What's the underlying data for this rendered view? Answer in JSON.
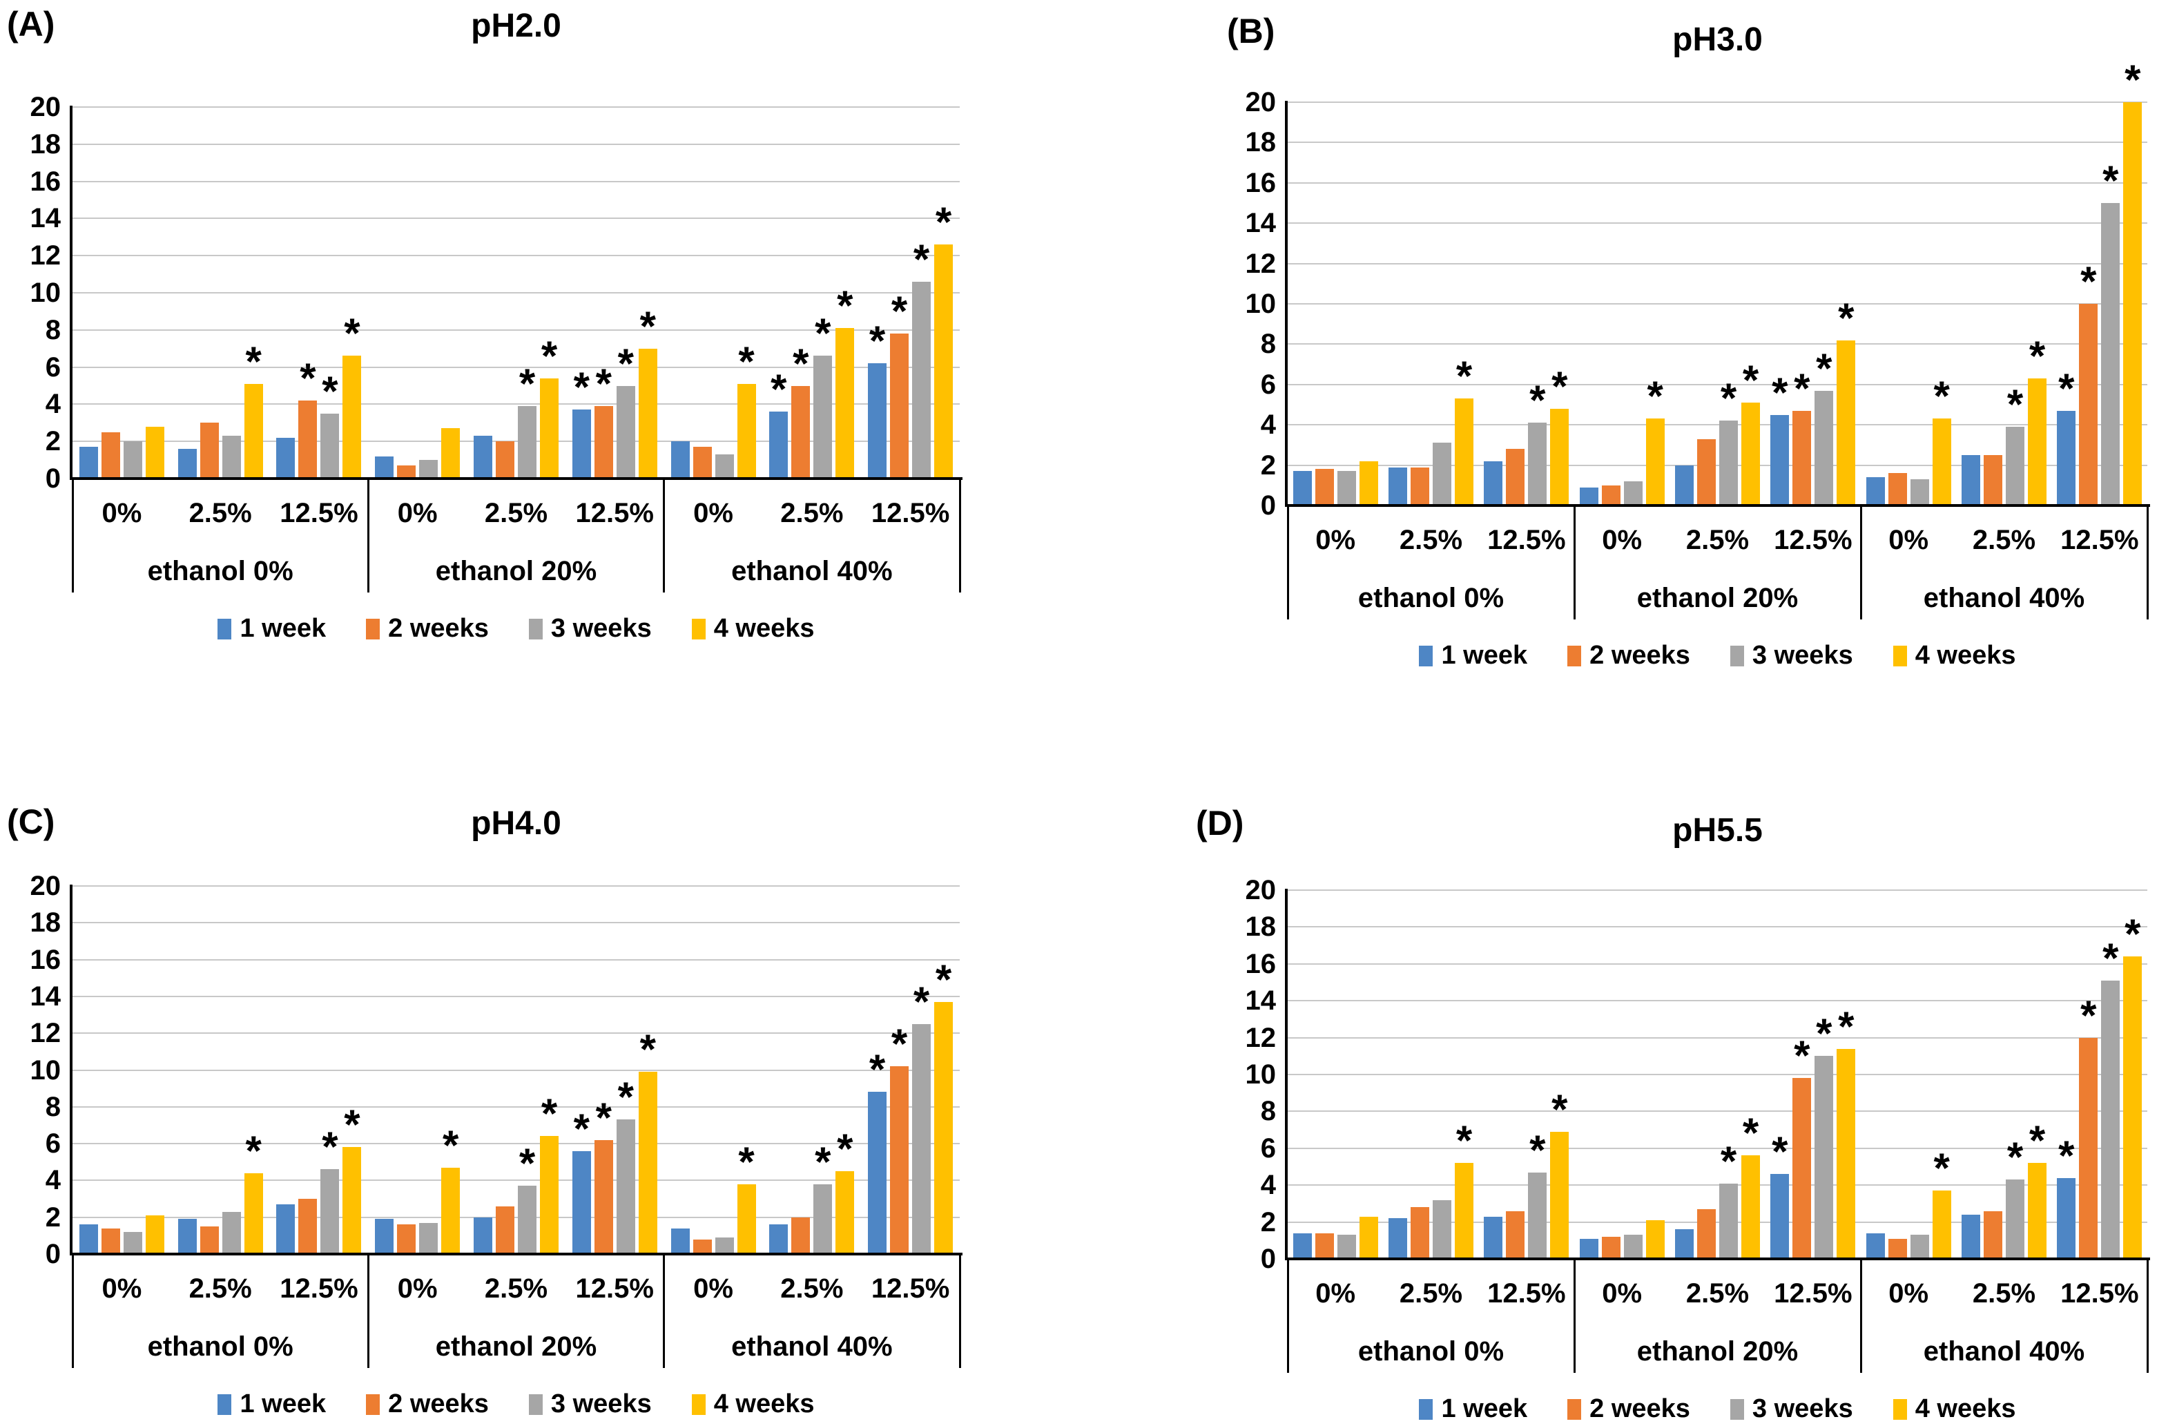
{
  "figure": {
    "background_color": "#ffffff",
    "gridline_color": "#C8C8C8",
    "axis_color": "#000000",
    "significance_marker": "*",
    "series": [
      "1 week",
      "2 weeks",
      "3 weeks",
      "4 weeks"
    ],
    "series_colors": [
      "#4E86C5",
      "#ED7D31",
      "#A6A6A6",
      "#FFC000"
    ],
    "y_ticks": [
      0,
      2,
      4,
      6,
      8,
      10,
      12,
      14,
      16,
      18,
      20
    ],
    "concentration_labels": [
      "0%",
      "2.5%",
      "12.5%"
    ],
    "ethanol_labels": [
      "ethanol 0%",
      "ethanol 20%",
      "ethanol 40%"
    ]
  },
  "chart_data": [
    {
      "type": "bar",
      "panel_label": "(A)",
      "title": "pH2.0",
      "ylim": [
        0,
        20
      ],
      "y_tick_step": 2,
      "grid": true,
      "legend": [
        "1 week",
        "2 weeks",
        "3 weeks",
        "4 weeks"
      ],
      "legend_position": "bottom",
      "groups": [
        {
          "ethanol": "ethanol 0%",
          "concentration": "0%",
          "values": [
            1.7,
            2.5,
            2.0,
            2.8
          ],
          "sig": [
            false,
            false,
            false,
            false
          ]
        },
        {
          "ethanol": "ethanol 0%",
          "concentration": "2.5%",
          "values": [
            1.6,
            3.0,
            2.3,
            5.1
          ],
          "sig": [
            false,
            false,
            false,
            true
          ]
        },
        {
          "ethanol": "ethanol 0%",
          "concentration": "12.5%",
          "values": [
            2.2,
            4.2,
            3.5,
            6.6
          ],
          "sig": [
            false,
            true,
            true,
            true
          ]
        },
        {
          "ethanol": "ethanol 20%",
          "concentration": "0%",
          "values": [
            1.2,
            0.7,
            1.0,
            2.7
          ],
          "sig": [
            false,
            false,
            false,
            false
          ]
        },
        {
          "ethanol": "ethanol 20%",
          "concentration": "2.5%",
          "values": [
            2.3,
            2.0,
            3.9,
            5.4
          ],
          "sig": [
            false,
            false,
            true,
            true
          ]
        },
        {
          "ethanol": "ethanol 20%",
          "concentration": "12.5%",
          "values": [
            3.7,
            3.9,
            5.0,
            7.0
          ],
          "sig": [
            true,
            true,
            true,
            true
          ]
        },
        {
          "ethanol": "ethanol 40%",
          "concentration": "0%",
          "values": [
            2.0,
            1.7,
            1.3,
            5.1
          ],
          "sig": [
            false,
            false,
            false,
            true
          ]
        },
        {
          "ethanol": "ethanol 40%",
          "concentration": "2.5%",
          "values": [
            3.6,
            5.0,
            6.6,
            8.1
          ],
          "sig": [
            true,
            true,
            true,
            true
          ]
        },
        {
          "ethanol": "ethanol 40%",
          "concentration": "12.5%",
          "values": [
            6.2,
            7.8,
            10.6,
            12.6
          ],
          "sig": [
            true,
            true,
            true,
            true
          ]
        }
      ]
    },
    {
      "type": "bar",
      "panel_label": "(B)",
      "title": "pH3.0",
      "ylim": [
        0,
        20
      ],
      "y_tick_step": 2,
      "grid": true,
      "legend": [
        "1 week",
        "2 weeks",
        "3 weeks",
        "4 weeks"
      ],
      "legend_position": "bottom",
      "groups": [
        {
          "ethanol": "ethanol 0%",
          "concentration": "0%",
          "values": [
            1.7,
            1.8,
            1.7,
            2.2
          ],
          "sig": [
            false,
            false,
            false,
            false
          ]
        },
        {
          "ethanol": "ethanol 0%",
          "concentration": "2.5%",
          "values": [
            1.9,
            1.9,
            3.1,
            5.3
          ],
          "sig": [
            false,
            false,
            false,
            true
          ]
        },
        {
          "ethanol": "ethanol 0%",
          "concentration": "12.5%",
          "values": [
            2.2,
            2.8,
            4.1,
            4.8
          ],
          "sig": [
            false,
            false,
            true,
            true
          ]
        },
        {
          "ethanol": "ethanol 20%",
          "concentration": "0%",
          "values": [
            0.9,
            1.0,
            1.2,
            4.3
          ],
          "sig": [
            false,
            false,
            false,
            true
          ]
        },
        {
          "ethanol": "ethanol 20%",
          "concentration": "2.5%",
          "values": [
            2.0,
            3.3,
            4.2,
            5.1
          ],
          "sig": [
            false,
            false,
            true,
            true
          ]
        },
        {
          "ethanol": "ethanol 20%",
          "concentration": "12.5%",
          "values": [
            4.5,
            4.7,
            5.7,
            8.2
          ],
          "sig": [
            true,
            true,
            true,
            true
          ]
        },
        {
          "ethanol": "ethanol 40%",
          "concentration": "0%",
          "values": [
            1.4,
            1.6,
            1.3,
            4.3
          ],
          "sig": [
            false,
            false,
            false,
            true
          ]
        },
        {
          "ethanol": "ethanol 40%",
          "concentration": "2.5%",
          "values": [
            2.5,
            2.5,
            3.9,
            6.3
          ],
          "sig": [
            false,
            false,
            true,
            true
          ]
        },
        {
          "ethanol": "ethanol 40%",
          "concentration": "12.5%",
          "values": [
            4.7,
            10.0,
            15.0,
            20.0
          ],
          "sig": [
            true,
            true,
            true,
            true
          ]
        }
      ]
    },
    {
      "type": "bar",
      "panel_label": "(C)",
      "title": "pH4.0",
      "ylim": [
        0,
        20
      ],
      "y_tick_step": 2,
      "grid": true,
      "legend": [
        "1 week",
        "2 weeks",
        "3 weeks",
        "4 weeks"
      ],
      "legend_position": "bottom",
      "groups": [
        {
          "ethanol": "ethanol 0%",
          "concentration": "0%",
          "values": [
            1.6,
            1.4,
            1.2,
            2.1
          ],
          "sig": [
            false,
            false,
            false,
            false
          ]
        },
        {
          "ethanol": "ethanol 0%",
          "concentration": "2.5%",
          "values": [
            1.9,
            1.5,
            2.3,
            4.4
          ],
          "sig": [
            false,
            false,
            false,
            true
          ]
        },
        {
          "ethanol": "ethanol 0%",
          "concentration": "12.5%",
          "values": [
            2.7,
            3.0,
            4.6,
            5.8
          ],
          "sig": [
            false,
            false,
            true,
            true
          ]
        },
        {
          "ethanol": "ethanol 20%",
          "concentration": "0%",
          "values": [
            1.9,
            1.6,
            1.7,
            4.7
          ],
          "sig": [
            false,
            false,
            false,
            true
          ]
        },
        {
          "ethanol": "ethanol 20%",
          "concentration": "2.5%",
          "values": [
            2.0,
            2.6,
            3.7,
            6.4
          ],
          "sig": [
            false,
            false,
            true,
            true
          ]
        },
        {
          "ethanol": "ethanol 20%",
          "concentration": "12.5%",
          "values": [
            5.6,
            6.2,
            7.3,
            9.9
          ],
          "sig": [
            true,
            true,
            true,
            true
          ]
        },
        {
          "ethanol": "ethanol 40%",
          "concentration": "0%",
          "values": [
            1.4,
            0.8,
            0.9,
            3.8
          ],
          "sig": [
            false,
            false,
            false,
            true
          ]
        },
        {
          "ethanol": "ethanol 40%",
          "concentration": "2.5%",
          "values": [
            1.6,
            2.0,
            3.8,
            4.5
          ],
          "sig": [
            false,
            false,
            true,
            true
          ]
        },
        {
          "ethanol": "ethanol 40%",
          "concentration": "12.5%",
          "values": [
            8.8,
            10.2,
            12.5,
            13.7
          ],
          "sig": [
            true,
            true,
            true,
            true
          ]
        }
      ]
    },
    {
      "type": "bar",
      "panel_label": "(D)",
      "title": "pH5.5",
      "ylim": [
        0,
        20
      ],
      "y_tick_step": 2,
      "grid": true,
      "legend": [
        "1 week",
        "2 weeks",
        "3 weeks",
        "4 weeks"
      ],
      "legend_position": "bottom",
      "groups": [
        {
          "ethanol": "ethanol 0%",
          "concentration": "0%",
          "values": [
            1.4,
            1.4,
            1.3,
            2.3
          ],
          "sig": [
            false,
            false,
            false,
            false
          ]
        },
        {
          "ethanol": "ethanol 0%",
          "concentration": "2.5%",
          "values": [
            2.2,
            2.8,
            3.2,
            5.2
          ],
          "sig": [
            false,
            false,
            false,
            true
          ]
        },
        {
          "ethanol": "ethanol 0%",
          "concentration": "12.5%",
          "values": [
            2.3,
            2.6,
            4.7,
            6.9
          ],
          "sig": [
            false,
            false,
            true,
            true
          ]
        },
        {
          "ethanol": "ethanol 20%",
          "concentration": "0%",
          "values": [
            1.1,
            1.2,
            1.3,
            2.1
          ],
          "sig": [
            false,
            false,
            false,
            false
          ]
        },
        {
          "ethanol": "ethanol 20%",
          "concentration": "2.5%",
          "values": [
            1.6,
            2.7,
            4.1,
            5.6
          ],
          "sig": [
            false,
            false,
            true,
            true
          ]
        },
        {
          "ethanol": "ethanol 20%",
          "concentration": "12.5%",
          "values": [
            4.6,
            9.8,
            11.0,
            11.4
          ],
          "sig": [
            true,
            true,
            true,
            true
          ]
        },
        {
          "ethanol": "ethanol 40%",
          "concentration": "0%",
          "values": [
            1.4,
            1.1,
            1.3,
            3.7
          ],
          "sig": [
            false,
            false,
            false,
            true
          ]
        },
        {
          "ethanol": "ethanol 40%",
          "concentration": "2.5%",
          "values": [
            2.4,
            2.6,
            4.3,
            5.2
          ],
          "sig": [
            false,
            false,
            true,
            true
          ]
        },
        {
          "ethanol": "ethanol 40%",
          "concentration": "12.5%",
          "values": [
            4.4,
            12.0,
            15.1,
            16.4
          ],
          "sig": [
            true,
            true,
            true,
            true
          ]
        }
      ]
    }
  ]
}
